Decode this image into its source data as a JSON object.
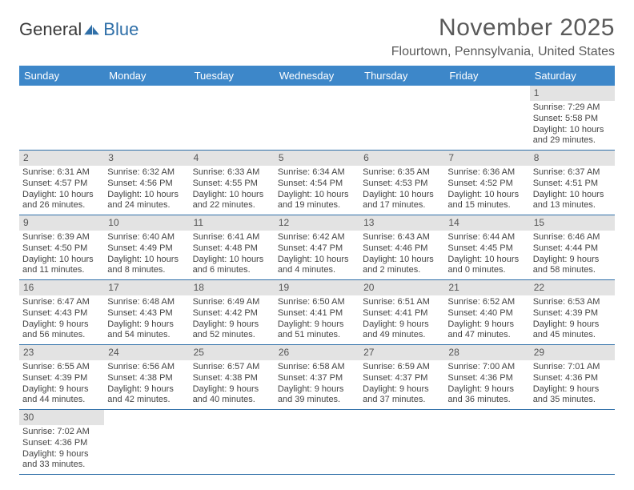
{
  "logo": {
    "text_general": "General",
    "text_blue": "Blue"
  },
  "title": {
    "month_year": "November 2025",
    "location": "Flourtown, Pennsylvania, United States"
  },
  "colors": {
    "header_bg": "#3d87c9",
    "header_text": "#ffffff",
    "daynum_bg": "#e3e3e3",
    "week_border": "#2f6fa8",
    "body_text": "#444444",
    "title_text": "#5a5a5a",
    "logo_blue": "#2f6fa8"
  },
  "typography": {
    "title_fontsize": 30,
    "location_fontsize": 16,
    "dow_fontsize": 13,
    "cell_fontsize": 11,
    "daynum_fontsize": 12
  },
  "days_of_week": [
    "Sunday",
    "Monday",
    "Tuesday",
    "Wednesday",
    "Thursday",
    "Friday",
    "Saturday"
  ],
  "weeks": [
    [
      null,
      null,
      null,
      null,
      null,
      null,
      {
        "n": "1",
        "sunrise": "Sunrise: 7:29 AM",
        "sunset": "Sunset: 5:58 PM",
        "daylight1": "Daylight: 10 hours",
        "daylight2": "and 29 minutes."
      }
    ],
    [
      {
        "n": "2",
        "sunrise": "Sunrise: 6:31 AM",
        "sunset": "Sunset: 4:57 PM",
        "daylight1": "Daylight: 10 hours",
        "daylight2": "and 26 minutes."
      },
      {
        "n": "3",
        "sunrise": "Sunrise: 6:32 AM",
        "sunset": "Sunset: 4:56 PM",
        "daylight1": "Daylight: 10 hours",
        "daylight2": "and 24 minutes."
      },
      {
        "n": "4",
        "sunrise": "Sunrise: 6:33 AM",
        "sunset": "Sunset: 4:55 PM",
        "daylight1": "Daylight: 10 hours",
        "daylight2": "and 22 minutes."
      },
      {
        "n": "5",
        "sunrise": "Sunrise: 6:34 AM",
        "sunset": "Sunset: 4:54 PM",
        "daylight1": "Daylight: 10 hours",
        "daylight2": "and 19 minutes."
      },
      {
        "n": "6",
        "sunrise": "Sunrise: 6:35 AM",
        "sunset": "Sunset: 4:53 PM",
        "daylight1": "Daylight: 10 hours",
        "daylight2": "and 17 minutes."
      },
      {
        "n": "7",
        "sunrise": "Sunrise: 6:36 AM",
        "sunset": "Sunset: 4:52 PM",
        "daylight1": "Daylight: 10 hours",
        "daylight2": "and 15 minutes."
      },
      {
        "n": "8",
        "sunrise": "Sunrise: 6:37 AM",
        "sunset": "Sunset: 4:51 PM",
        "daylight1": "Daylight: 10 hours",
        "daylight2": "and 13 minutes."
      }
    ],
    [
      {
        "n": "9",
        "sunrise": "Sunrise: 6:39 AM",
        "sunset": "Sunset: 4:50 PM",
        "daylight1": "Daylight: 10 hours",
        "daylight2": "and 11 minutes."
      },
      {
        "n": "10",
        "sunrise": "Sunrise: 6:40 AM",
        "sunset": "Sunset: 4:49 PM",
        "daylight1": "Daylight: 10 hours",
        "daylight2": "and 8 minutes."
      },
      {
        "n": "11",
        "sunrise": "Sunrise: 6:41 AM",
        "sunset": "Sunset: 4:48 PM",
        "daylight1": "Daylight: 10 hours",
        "daylight2": "and 6 minutes."
      },
      {
        "n": "12",
        "sunrise": "Sunrise: 6:42 AM",
        "sunset": "Sunset: 4:47 PM",
        "daylight1": "Daylight: 10 hours",
        "daylight2": "and 4 minutes."
      },
      {
        "n": "13",
        "sunrise": "Sunrise: 6:43 AM",
        "sunset": "Sunset: 4:46 PM",
        "daylight1": "Daylight: 10 hours",
        "daylight2": "and 2 minutes."
      },
      {
        "n": "14",
        "sunrise": "Sunrise: 6:44 AM",
        "sunset": "Sunset: 4:45 PM",
        "daylight1": "Daylight: 10 hours",
        "daylight2": "and 0 minutes."
      },
      {
        "n": "15",
        "sunrise": "Sunrise: 6:46 AM",
        "sunset": "Sunset: 4:44 PM",
        "daylight1": "Daylight: 9 hours",
        "daylight2": "and 58 minutes."
      }
    ],
    [
      {
        "n": "16",
        "sunrise": "Sunrise: 6:47 AM",
        "sunset": "Sunset: 4:43 PM",
        "daylight1": "Daylight: 9 hours",
        "daylight2": "and 56 minutes."
      },
      {
        "n": "17",
        "sunrise": "Sunrise: 6:48 AM",
        "sunset": "Sunset: 4:43 PM",
        "daylight1": "Daylight: 9 hours",
        "daylight2": "and 54 minutes."
      },
      {
        "n": "18",
        "sunrise": "Sunrise: 6:49 AM",
        "sunset": "Sunset: 4:42 PM",
        "daylight1": "Daylight: 9 hours",
        "daylight2": "and 52 minutes."
      },
      {
        "n": "19",
        "sunrise": "Sunrise: 6:50 AM",
        "sunset": "Sunset: 4:41 PM",
        "daylight1": "Daylight: 9 hours",
        "daylight2": "and 51 minutes."
      },
      {
        "n": "20",
        "sunrise": "Sunrise: 6:51 AM",
        "sunset": "Sunset: 4:41 PM",
        "daylight1": "Daylight: 9 hours",
        "daylight2": "and 49 minutes."
      },
      {
        "n": "21",
        "sunrise": "Sunrise: 6:52 AM",
        "sunset": "Sunset: 4:40 PM",
        "daylight1": "Daylight: 9 hours",
        "daylight2": "and 47 minutes."
      },
      {
        "n": "22",
        "sunrise": "Sunrise: 6:53 AM",
        "sunset": "Sunset: 4:39 PM",
        "daylight1": "Daylight: 9 hours",
        "daylight2": "and 45 minutes."
      }
    ],
    [
      {
        "n": "23",
        "sunrise": "Sunrise: 6:55 AM",
        "sunset": "Sunset: 4:39 PM",
        "daylight1": "Daylight: 9 hours",
        "daylight2": "and 44 minutes."
      },
      {
        "n": "24",
        "sunrise": "Sunrise: 6:56 AM",
        "sunset": "Sunset: 4:38 PM",
        "daylight1": "Daylight: 9 hours",
        "daylight2": "and 42 minutes."
      },
      {
        "n": "25",
        "sunrise": "Sunrise: 6:57 AM",
        "sunset": "Sunset: 4:38 PM",
        "daylight1": "Daylight: 9 hours",
        "daylight2": "and 40 minutes."
      },
      {
        "n": "26",
        "sunrise": "Sunrise: 6:58 AM",
        "sunset": "Sunset: 4:37 PM",
        "daylight1": "Daylight: 9 hours",
        "daylight2": "and 39 minutes."
      },
      {
        "n": "27",
        "sunrise": "Sunrise: 6:59 AM",
        "sunset": "Sunset: 4:37 PM",
        "daylight1": "Daylight: 9 hours",
        "daylight2": "and 37 minutes."
      },
      {
        "n": "28",
        "sunrise": "Sunrise: 7:00 AM",
        "sunset": "Sunset: 4:36 PM",
        "daylight1": "Daylight: 9 hours",
        "daylight2": "and 36 minutes."
      },
      {
        "n": "29",
        "sunrise": "Sunrise: 7:01 AM",
        "sunset": "Sunset: 4:36 PM",
        "daylight1": "Daylight: 9 hours",
        "daylight2": "and 35 minutes."
      }
    ],
    [
      {
        "n": "30",
        "sunrise": "Sunrise: 7:02 AM",
        "sunset": "Sunset: 4:36 PM",
        "daylight1": "Daylight: 9 hours",
        "daylight2": "and 33 minutes."
      },
      null,
      null,
      null,
      null,
      null,
      null
    ]
  ]
}
